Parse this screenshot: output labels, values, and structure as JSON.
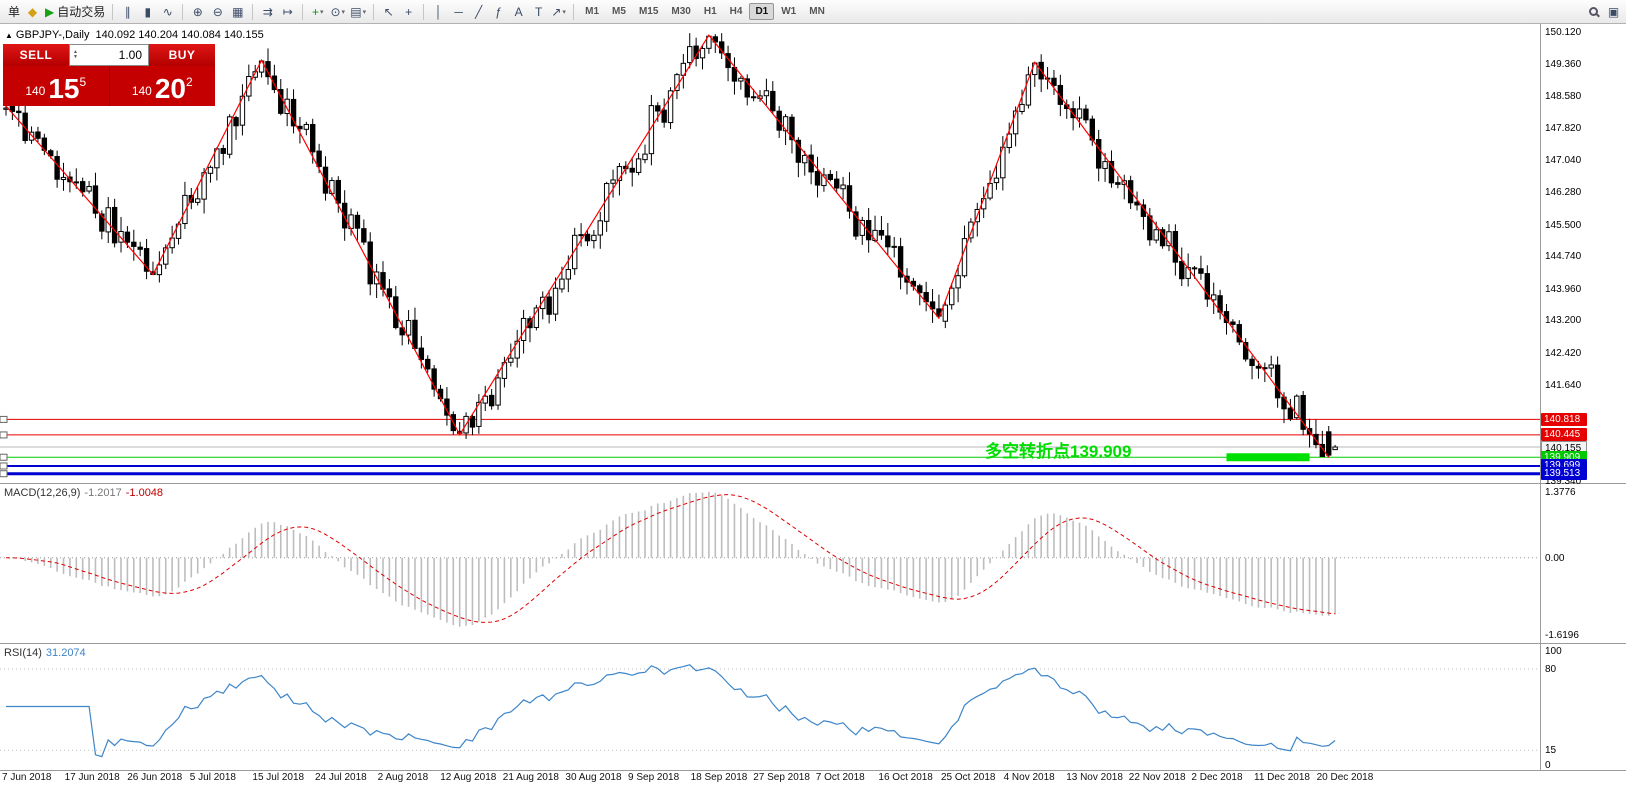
{
  "toolbar": {
    "items": [
      {
        "name": "new-order-button",
        "label": "单"
      },
      {
        "name": "metaquotes-icon",
        "glyph": "◆",
        "color": "#d4a017"
      },
      {
        "name": "autotrading-button",
        "glyph": "▶",
        "color": "#18a018",
        "label": "自动交易"
      },
      {
        "type": "sep"
      },
      {
        "name": "bars-chart-button",
        "glyph": "∥"
      },
      {
        "name": "candlestick-chart-button",
        "glyph": "▮"
      },
      {
        "name": "line-chart-button",
        "glyph": "∿"
      },
      {
        "type": "sep"
      },
      {
        "name": "zoom-in-button",
        "glyph": "⊕"
      },
      {
        "name": "zoom-out-button",
        "glyph": "⊖"
      },
      {
        "name": "grid-button",
        "glyph": "▦"
      },
      {
        "type": "sep"
      },
      {
        "name": "auto-scroll-button",
        "glyph": "⇉"
      },
      {
        "name": "chart-shift-button",
        "glyph": "↦"
      },
      {
        "type": "sep"
      },
      {
        "name": "indicators-button",
        "glyph": "+",
        "color": "#0a9a0a",
        "dropdown": true
      },
      {
        "name": "periods-button",
        "glyph": "⊙",
        "dropdown": true
      },
      {
        "name": "templates-button",
        "glyph": "▤",
        "dropdown": true
      },
      {
        "type": "sep"
      },
      {
        "name": "cursor-button",
        "glyph": "↖"
      },
      {
        "name": "crosshair-button",
        "glyph": "+"
      },
      {
        "type": "sep"
      },
      {
        "name": "vertical-line-button",
        "glyph": "│"
      },
      {
        "name": "horizontal-line-button",
        "glyph": "─"
      },
      {
        "name": "trendline-button",
        "glyph": "╱"
      },
      {
        "name": "fibonacci-button",
        "glyph": "ƒ"
      },
      {
        "name": "text-button",
        "glyph": "A"
      },
      {
        "name": "label-button",
        "glyph": "T"
      },
      {
        "name": "arrows-button",
        "glyph": "↗",
        "dropdown": true
      },
      {
        "type": "sep"
      },
      {
        "name": "tf-m1",
        "type": "tf",
        "label": "M1"
      },
      {
        "name": "tf-m5",
        "type": "tf",
        "label": "M5"
      },
      {
        "name": "tf-m15",
        "type": "tf",
        "label": "M15"
      },
      {
        "name": "tf-m30",
        "type": "tf",
        "label": "M30"
      },
      {
        "name": "tf-h1",
        "type": "tf",
        "label": "H1"
      },
      {
        "name": "tf-h4",
        "type": "tf",
        "label": "H4"
      },
      {
        "name": "tf-d1",
        "type": "tf",
        "label": "D1",
        "active": true
      },
      {
        "name": "tf-w1",
        "type": "tf",
        "label": "W1"
      },
      {
        "name": "tf-mn",
        "type": "tf",
        "label": "MN"
      },
      {
        "name": "search-button",
        "css": "mag",
        "spacer": true
      },
      {
        "name": "dock-button",
        "glyph": "▣"
      }
    ]
  },
  "chart": {
    "symbol_direction": "▲",
    "symbol_title": "GBPJPY-,Daily",
    "ohlc_text": "140.092 140.204 140.084 140.155",
    "trade_panel": {
      "sell_label": "SELL",
      "buy_label": "BUY",
      "volume": "1.00",
      "sell_price": {
        "prefix": "140",
        "big": "15",
        "sup": "5"
      },
      "buy_price": {
        "prefix": "140",
        "big": "20",
        "sup": "2"
      }
    },
    "annotation": {
      "text": "多空转折点139.909",
      "color": "#00dd00"
    },
    "price_tags": [
      {
        "label": "140.818",
        "price": 140.818,
        "bg": "#e60000",
        "fg": "#ffffff"
      },
      {
        "label": "140.445",
        "price": 140.445,
        "bg": "#e60000",
        "fg": "#ffffff"
      },
      {
        "label": "140.155",
        "price": 140.155,
        "bg": "#f5f5f5",
        "fg": "#000000",
        "border": "#909090"
      },
      {
        "label": "139.909",
        "price": 139.909,
        "bg": "#00c800",
        "fg": "#ffffff"
      },
      {
        "label": "139.699",
        "price": 139.699,
        "bg": "#0000d2",
        "fg": "#ffffff"
      },
      {
        "label": "139.513",
        "price": 139.513,
        "bg": "#0000d2",
        "fg": "#ffffff"
      }
    ]
  },
  "macd_panel": {
    "title": "MACD(12,26,9)",
    "value_main": "-1.2017",
    "value_signal": "-1.0048",
    "scale_labels": [
      "1.3776",
      "0.00",
      "-1.6196"
    ]
  },
  "rsi_panel": {
    "title": "RSI(14)",
    "value": "31.2074",
    "scale_labels": [
      "100",
      "80",
      "15",
      "0"
    ]
  },
  "x_axis": {
    "labels": [
      "7 Jun 2018",
      "17 Jun 2018",
      "26 Jun 2018",
      "5 Jul 2018",
      "15 Jul 2018",
      "24 Jul 2018",
      "2 Aug 2018",
      "12 Aug 2018",
      "21 Aug 2018",
      "30 Aug 2018",
      "9 Sep 2018",
      "18 Sep 2018",
      "27 Sep 2018",
      "7 Oct 2018",
      "16 Oct 2018",
      "25 Oct 2018",
      "4 Nov 2018",
      "13 Nov 2018",
      "22 Nov 2018",
      "2 Dec 2018",
      "11 Dec 2018",
      "20 Dec 2018"
    ]
  },
  "chart_data": {
    "type": "candlestick",
    "symbol": "GBPJPY-",
    "timeframe": "Daily",
    "current_ohlc": {
      "open": 140.092,
      "high": 140.204,
      "low": 140.084,
      "close": 140.155
    },
    "y_axis": {
      "view_max": 150.32,
      "view_min": 139.29,
      "ticks": [
        "150.120",
        "149.360",
        "148.580",
        "147.820",
        "147.040",
        "146.280",
        "145.500",
        "144.740",
        "143.960",
        "143.200",
        "142.420",
        "141.640",
        "139.340"
      ]
    },
    "zigzag_points": [
      {
        "i": 0,
        "price": 148.35
      },
      {
        "i": 23,
        "price": 144.3
      },
      {
        "i": 40,
        "price": 149.45
      },
      {
        "i": 71,
        "price": 140.45
      },
      {
        "i": 110,
        "price": 150.05
      },
      {
        "i": 146,
        "price": 143.25
      },
      {
        "i": 161,
        "price": 149.4
      },
      {
        "i": 207,
        "price": 139.909
      }
    ],
    "horizontal_levels": [
      {
        "price": 140.818,
        "color": "#e60000",
        "thickness": 1,
        "handle": true
      },
      {
        "price": 140.445,
        "color": "#e60000",
        "thickness": 1,
        "handle": true
      },
      {
        "price": 140.155,
        "color": "#b9b9b9",
        "thickness": 1,
        "handle": false
      },
      {
        "price": 139.909,
        "color": "#00ce00",
        "thickness": 1,
        "handle": true
      },
      {
        "price": 139.699,
        "color": "#0000d2",
        "thickness": 2,
        "handle": true
      },
      {
        "price": 139.513,
        "color": "#0000d2",
        "thickness": 3,
        "handle": true
      }
    ],
    "highlight_segment": {
      "price": 139.909,
      "from_index": 191,
      "to_index": 204,
      "color": "#00e000",
      "thickness": 8
    },
    "candles": {
      "count": 209,
      "seed": 11,
      "synthesized_from": "zigzag_points"
    },
    "indicators": [
      {
        "name": "MACD",
        "params": [
          12,
          26,
          9
        ],
        "main": -1.2017,
        "signal": -1.0048,
        "scale_max": 1.3776,
        "scale_min": -1.6196
      },
      {
        "name": "RSI",
        "params": [
          14
        ],
        "value": 31.2074,
        "levels": [
          80,
          15
        ],
        "range": [
          0,
          100
        ]
      }
    ]
  }
}
